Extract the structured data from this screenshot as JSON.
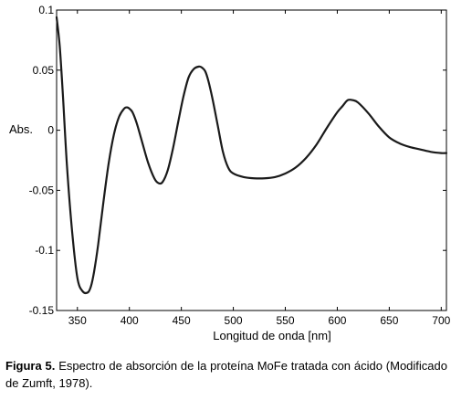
{
  "chart_data": {
    "type": "line",
    "title": "",
    "xlabel": "Longitud de onda [nm]",
    "ylabel": "Abs.",
    "xlim": [
      330,
      705
    ],
    "ylim": [
      -0.15,
      0.1
    ],
    "xticks": [
      {
        "value": 350,
        "label": "350"
      },
      {
        "value": 400,
        "label": "400"
      },
      {
        "value": 450,
        "label": "450"
      },
      {
        "value": 500,
        "label": "500"
      },
      {
        "value": 550,
        "label": "550"
      },
      {
        "value": 600,
        "label": "600"
      },
      {
        "value": 650,
        "label": "650"
      },
      {
        "value": 700,
        "label": "700"
      }
    ],
    "yticks": [
      {
        "value": 0.1,
        "label": "0.1"
      },
      {
        "value": 0.05,
        "label": "0.05"
      },
      {
        "value": 0,
        "label": "0"
      },
      {
        "value": -0.05,
        "label": "-0.05"
      },
      {
        "value": -0.1,
        "label": "-0.1"
      },
      {
        "value": -0.15,
        "label": "-0.15"
      }
    ],
    "grid": false,
    "line_color": "#1a1a1a",
    "series": [
      {
        "x": [
          330,
          333,
          336,
          340,
          345,
          350,
          355,
          360,
          363,
          366,
          370,
          375,
          380,
          385,
          390,
          395,
          398,
          400,
          403,
          407,
          412,
          418,
          424,
          428,
          432,
          437,
          442,
          447,
          452,
          457,
          462,
          467,
          470,
          473,
          476,
          480,
          485,
          490,
          495,
          500,
          510,
          520,
          530,
          540,
          550,
          560,
          570,
          580,
          590,
          600,
          605,
          610,
          615,
          620,
          630,
          640,
          650,
          660,
          670,
          680,
          690,
          700,
          705
        ],
        "y": [
          0.094,
          0.07,
          0.03,
          -0.03,
          -0.085,
          -0.123,
          -0.134,
          -0.135,
          -0.13,
          -0.118,
          -0.095,
          -0.06,
          -0.028,
          -0.004,
          0.011,
          0.018,
          0.019,
          0.018,
          0.015,
          0.006,
          -0.009,
          -0.027,
          -0.04,
          -0.044,
          -0.043,
          -0.033,
          -0.015,
          0.007,
          0.028,
          0.044,
          0.051,
          0.053,
          0.052,
          0.049,
          0.041,
          0.026,
          0.004,
          -0.018,
          -0.031,
          -0.036,
          -0.039,
          -0.04,
          -0.04,
          -0.039,
          -0.036,
          -0.031,
          -0.023,
          -0.012,
          0.002,
          0.015,
          0.02,
          0.025,
          0.025,
          0.023,
          0.014,
          0.003,
          -0.006,
          -0.011,
          -0.014,
          -0.016,
          -0.018,
          -0.019,
          -0.019
        ]
      }
    ]
  },
  "caption": {
    "label": "Figura 5.",
    "text": "Espectro de absorción de la proteína MoFe tratada con ácido (Modificado de Zumft, 1978)."
  }
}
